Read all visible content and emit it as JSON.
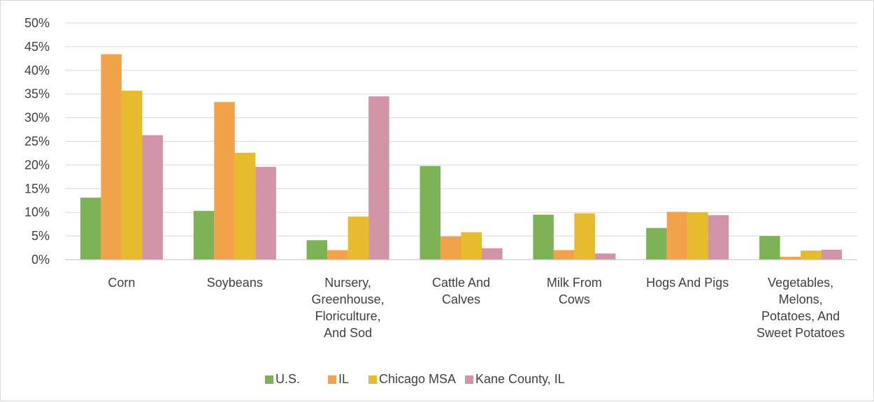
{
  "chart_data": {
    "type": "bar",
    "title": "",
    "xlabel": "",
    "ylabel": "",
    "ylim": [
      0,
      50
    ],
    "y_ticks": [
      "0%",
      "5%",
      "10%",
      "15%",
      "20%",
      "25%",
      "30%",
      "35%",
      "40%",
      "45%",
      "50%"
    ],
    "y_tick_values": [
      0,
      5,
      10,
      15,
      20,
      25,
      30,
      35,
      40,
      45,
      50
    ],
    "grid": true,
    "legend_position": "bottom",
    "categories": [
      [
        "Corn"
      ],
      [
        "Soybeans"
      ],
      [
        "Nursery,",
        "Greenhouse,",
        "Floriculture,",
        "And Sod"
      ],
      [
        "Cattle And",
        "Calves"
      ],
      [
        "Milk From",
        "Cows"
      ],
      [
        "Hogs And Pigs"
      ],
      [
        "Vegetables,",
        "Melons,",
        "Potatoes, And",
        "Sweet Potatoes"
      ]
    ],
    "series": [
      {
        "name": "U.S.",
        "color": "#7db356",
        "values": [
          13.1,
          10.3,
          4.1,
          19.8,
          9.5,
          6.7,
          5.0
        ]
      },
      {
        "name": "IL",
        "color": "#f2a34a",
        "values": [
          43.4,
          33.3,
          2.0,
          4.9,
          2.0,
          10.1,
          0.6
        ]
      },
      {
        "name": "Chicago MSA",
        "color": "#e6bb2e",
        "values": [
          35.7,
          22.6,
          9.1,
          5.8,
          9.8,
          10.0,
          1.9
        ]
      },
      {
        "name": "Kane County, IL",
        "color": "#d193a6",
        "values": [
          26.3,
          19.6,
          34.5,
          2.4,
          1.3,
          9.4,
          2.1
        ]
      }
    ]
  }
}
